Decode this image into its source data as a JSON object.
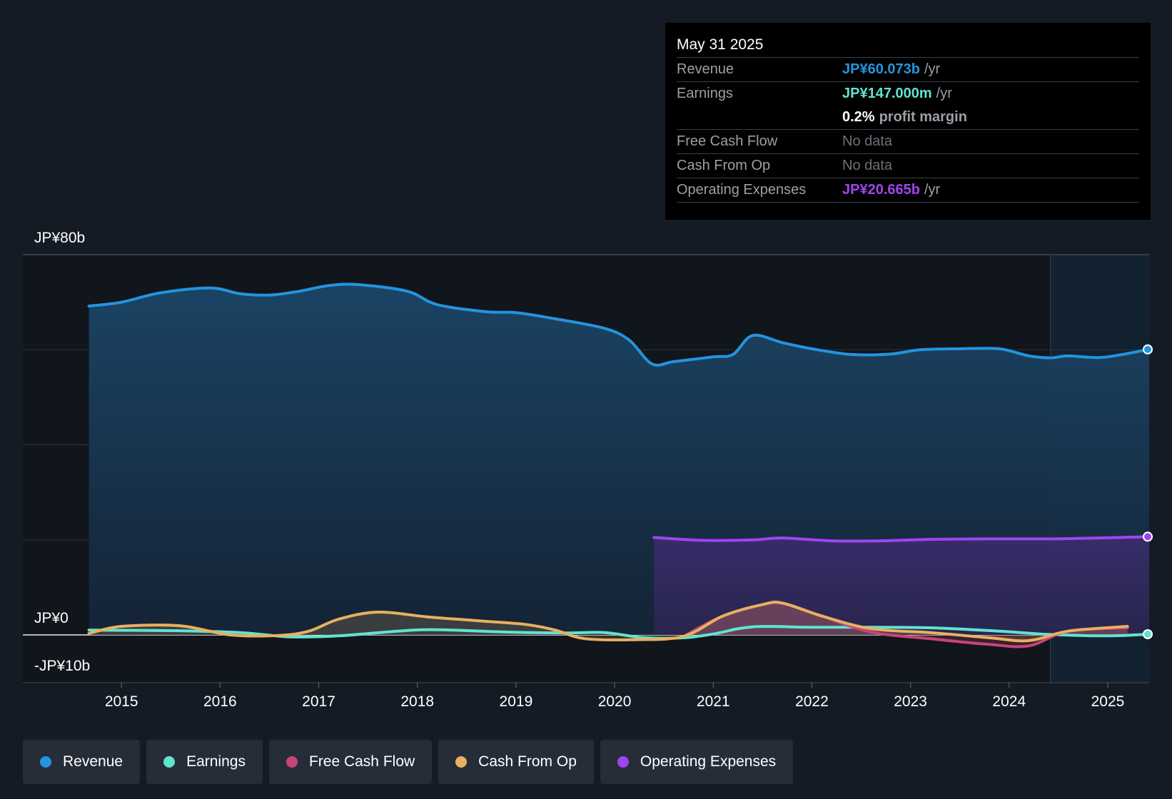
{
  "tooltip": {
    "date": "May 31 2025",
    "rows": [
      {
        "label": "Revenue",
        "value": "JP¥60.073b",
        "unit": "/yr",
        "color": "#2394df"
      },
      {
        "label": "Earnings",
        "value": "JP¥147.000m",
        "unit": "/yr",
        "color": "#62e3d0"
      },
      {
        "label": "",
        "value": "0.2%",
        "unit": "profit margin",
        "color": "#ffffff"
      },
      {
        "label": "Free Cash Flow",
        "value": "No data"
      },
      {
        "label": "Cash From Op",
        "value": "No data"
      },
      {
        "label": "Operating Expenses",
        "value": "JP¥20.665b",
        "unit": "/yr",
        "color": "#a044f0"
      }
    ]
  },
  "legend": [
    {
      "label": "Revenue",
      "color": "#2394df"
    },
    {
      "label": "Earnings",
      "color": "#62e3d0"
    },
    {
      "label": "Free Cash Flow",
      "color": "#c74577"
    },
    {
      "label": "Cash From Op",
      "color": "#e8b060"
    },
    {
      "label": "Operating Expenses",
      "color": "#a044f0"
    }
  ],
  "chart_data": {
    "type": "area",
    "title": "",
    "y_labels": {
      "top": "JP¥80b",
      "zero": "JP¥0",
      "bottom": "-JP¥10b"
    },
    "ylim": [
      -10,
      80
    ],
    "xlim": [
      2014.0,
      2025.42
    ],
    "x_ticks": [
      "2015",
      "2016",
      "2017",
      "2018",
      "2019",
      "2020",
      "2021",
      "2022",
      "2023",
      "2024",
      "2025"
    ],
    "forecast_start": 2024.42,
    "series": [
      {
        "name": "Revenue",
        "color": "#2394df",
        "points": [
          [
            2014.67,
            69.2
          ],
          [
            2015.0,
            70.0
          ],
          [
            2015.4,
            72.0
          ],
          [
            2015.9,
            73.0
          ],
          [
            2016.2,
            71.8
          ],
          [
            2016.5,
            71.5
          ],
          [
            2016.8,
            72.3
          ],
          [
            2017.1,
            73.5
          ],
          [
            2017.4,
            73.7
          ],
          [
            2017.9,
            72.3
          ],
          [
            2018.2,
            69.5
          ],
          [
            2018.7,
            68.0
          ],
          [
            2019.0,
            67.8
          ],
          [
            2019.4,
            66.5
          ],
          [
            2019.9,
            64.5
          ],
          [
            2020.15,
            62.0
          ],
          [
            2020.38,
            57.0
          ],
          [
            2020.6,
            57.5
          ],
          [
            2021.0,
            58.5
          ],
          [
            2021.2,
            59.0
          ],
          [
            2021.4,
            63.0
          ],
          [
            2021.7,
            61.5
          ],
          [
            2022.0,
            60.2
          ],
          [
            2022.4,
            59.0
          ],
          [
            2022.8,
            59.1
          ],
          [
            2023.1,
            60.0
          ],
          [
            2023.5,
            60.2
          ],
          [
            2023.9,
            60.2
          ],
          [
            2024.2,
            58.7
          ],
          [
            2024.42,
            58.3
          ],
          [
            2024.6,
            58.7
          ],
          [
            2024.95,
            58.4
          ],
          [
            2025.42,
            60.07
          ]
        ]
      },
      {
        "name": "Earnings",
        "color": "#62e3d0",
        "points": [
          [
            2014.67,
            1.0
          ],
          [
            2015.5,
            0.9
          ],
          [
            2016.2,
            0.5
          ],
          [
            2016.7,
            -0.4
          ],
          [
            2017.2,
            -0.2
          ],
          [
            2017.8,
            0.8
          ],
          [
            2018.2,
            1.1
          ],
          [
            2018.9,
            0.6
          ],
          [
            2019.5,
            0.4
          ],
          [
            2019.9,
            0.5
          ],
          [
            2020.3,
            -0.6
          ],
          [
            2020.7,
            -0.6
          ],
          [
            2021.0,
            0.2
          ],
          [
            2021.4,
            1.7
          ],
          [
            2022.0,
            1.6
          ],
          [
            2022.6,
            1.6
          ],
          [
            2023.2,
            1.5
          ],
          [
            2023.9,
            0.8
          ],
          [
            2024.4,
            0.1
          ],
          [
            2025.0,
            -0.2
          ],
          [
            2025.42,
            0.15
          ]
        ]
      },
      {
        "name": "Cash From Op",
        "color": "#e8b060",
        "points": [
          [
            2014.67,
            0.3
          ],
          [
            2015.0,
            1.8
          ],
          [
            2015.6,
            1.9
          ],
          [
            2016.1,
            0.0
          ],
          [
            2016.6,
            -0.1
          ],
          [
            2016.9,
            0.8
          ],
          [
            2017.2,
            3.3
          ],
          [
            2017.6,
            4.8
          ],
          [
            2018.1,
            3.8
          ],
          [
            2018.6,
            3.0
          ],
          [
            2019.1,
            2.2
          ],
          [
            2019.4,
            1.0
          ],
          [
            2019.7,
            -0.8
          ],
          [
            2020.2,
            -1.0
          ],
          [
            2020.7,
            -0.3
          ],
          [
            2021.1,
            4.0
          ],
          [
            2021.5,
            6.4
          ],
          [
            2021.7,
            6.7
          ],
          [
            2022.1,
            4.0
          ],
          [
            2022.6,
            1.3
          ],
          [
            2023.2,
            0.5
          ],
          [
            2023.8,
            -0.6
          ],
          [
            2024.2,
            -1.2
          ],
          [
            2024.6,
            0.8
          ],
          [
            2025.2,
            1.8
          ]
        ]
      },
      {
        "name": "Free Cash Flow",
        "color": "#c74577",
        "points": [
          [
            2020.7,
            -0.3
          ],
          [
            2021.1,
            4.0
          ],
          [
            2021.5,
            6.4
          ],
          [
            2021.7,
            6.7
          ],
          [
            2022.1,
            4.0
          ],
          [
            2022.6,
            0.6
          ],
          [
            2023.2,
            -0.8
          ],
          [
            2023.8,
            -2.0
          ],
          [
            2024.2,
            -2.3
          ],
          [
            2024.6,
            0.8
          ],
          [
            2025.2,
            1.5
          ]
        ]
      },
      {
        "name": "Operating Expenses",
        "color": "#a044f0",
        "points": [
          [
            2020.4,
            20.5
          ],
          [
            2020.9,
            19.9
          ],
          [
            2021.4,
            20.0
          ],
          [
            2021.7,
            20.4
          ],
          [
            2022.2,
            19.8
          ],
          [
            2022.7,
            19.8
          ],
          [
            2023.2,
            20.1
          ],
          [
            2023.8,
            20.2
          ],
          [
            2024.4,
            20.2
          ],
          [
            2024.9,
            20.4
          ],
          [
            2025.42,
            20.67
          ]
        ]
      }
    ]
  }
}
